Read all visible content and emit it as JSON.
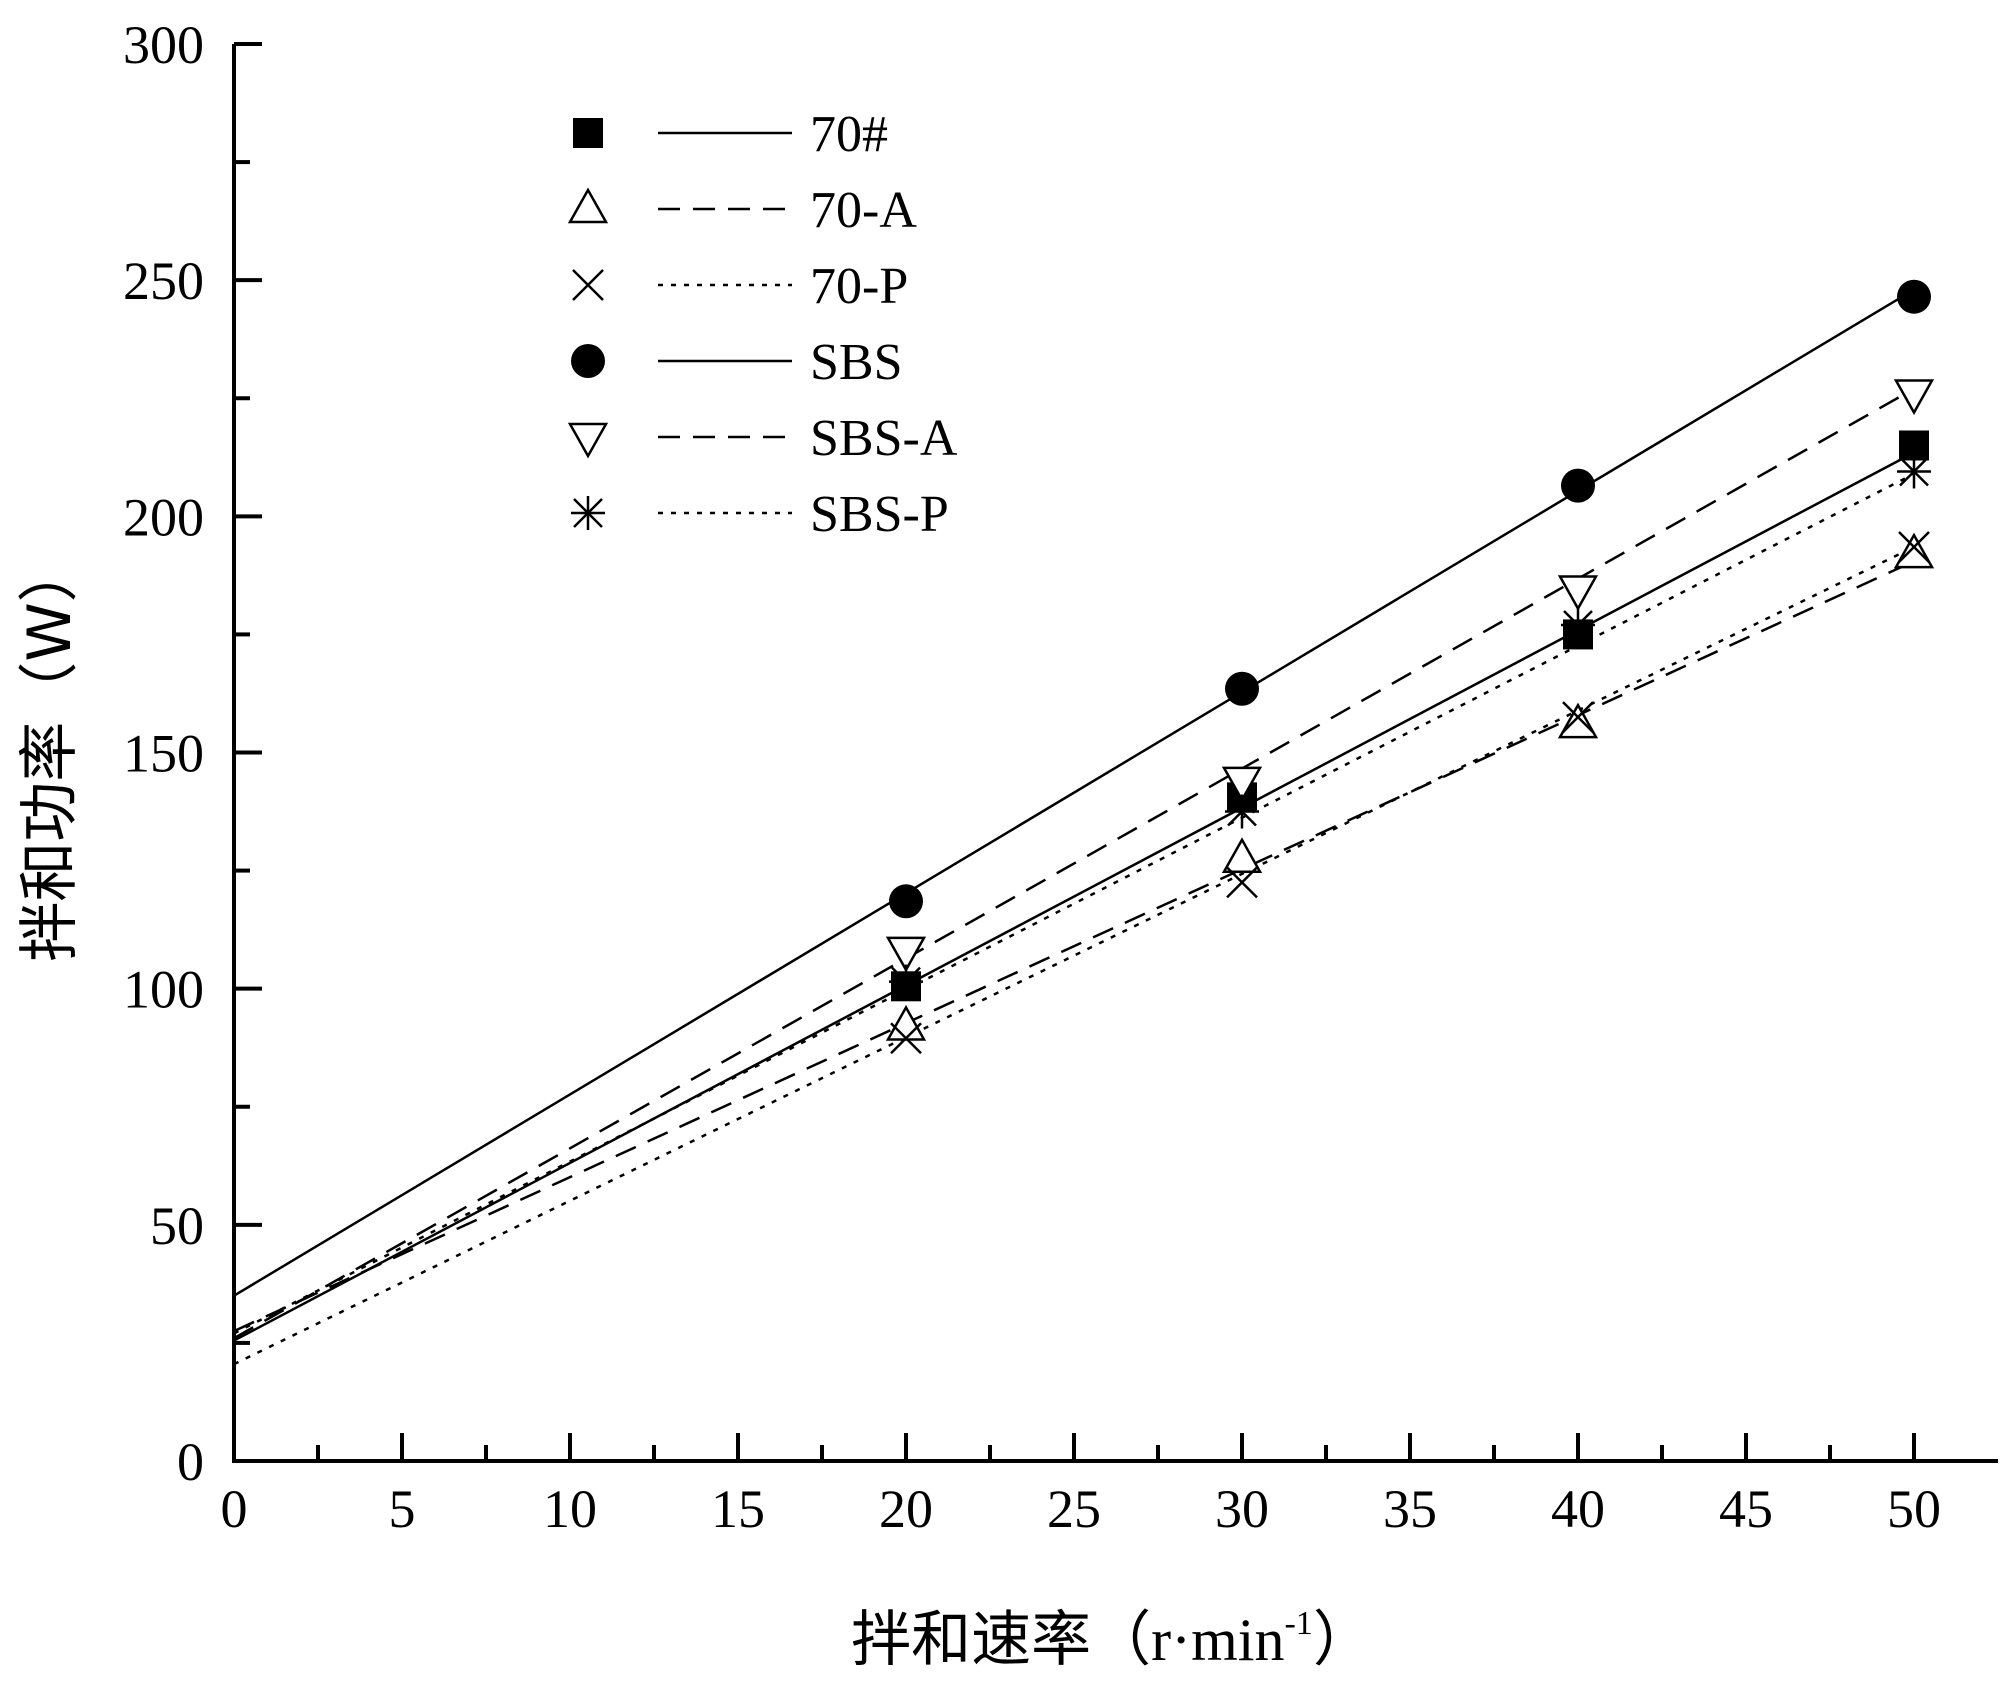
{
  "chart_data": {
    "type": "scatter",
    "xlabel": "拌和速率",
    "xlabel_unit": "（r·min",
    "xlabel_unit_sup": "-1",
    "xlabel_unit_close": "）",
    "ylabel": "拌和功率（W）",
    "xlim": [
      0,
      52.5
    ],
    "ylim": [
      0,
      300
    ],
    "x_ticks": [
      0,
      5,
      10,
      15,
      20,
      25,
      30,
      35,
      40,
      45,
      50
    ],
    "y_ticks": [
      0,
      50,
      100,
      150,
      200,
      250,
      300
    ],
    "x_tick_labels": [
      "0",
      "5",
      "10",
      "15",
      "20",
      "25",
      "30",
      "35",
      "40",
      "45",
      "50"
    ],
    "y_tick_labels": [
      "0",
      "50",
      "100",
      "150",
      "200",
      "250",
      "300"
    ],
    "legend_position": "top-left",
    "series": [
      {
        "name": "70#",
        "marker": "square",
        "line": "solid",
        "x": [
          20,
          30,
          40,
          50
        ],
        "y": [
          100.5,
          140.5,
          175,
          215
        ],
        "fit": {
          "intercept": 25.5,
          "slope": 3.76
        }
      },
      {
        "name": "70-A",
        "marker": "triangle-up",
        "line": "dashed",
        "x": [
          20,
          30,
          40,
          50
        ],
        "y": [
          92,
          127.5,
          156,
          192
        ],
        "fit": {
          "intercept": 27.5,
          "slope": 3.26
        }
      },
      {
        "name": "70-P",
        "marker": "x",
        "line": "dotted",
        "x": [
          20,
          30,
          40,
          50
        ],
        "y": [
          89.5,
          122.5,
          157.5,
          193.5
        ],
        "fit": {
          "intercept": 20.5,
          "slope": 3.46
        }
      },
      {
        "name": "SBS",
        "marker": "circle",
        "line": "solid",
        "x": [
          20,
          30,
          40,
          50
        ],
        "y": [
          118.5,
          163.5,
          206.5,
          246.5
        ],
        "fit": {
          "intercept": 35,
          "slope": 4.26
        }
      },
      {
        "name": "SBS-A",
        "marker": "triangle-down",
        "line": "dashed",
        "x": [
          20,
          30,
          40,
          50
        ],
        "y": [
          108,
          144,
          184.5,
          226
        ],
        "fit": {
          "intercept": 26,
          "slope": 4.02
        }
      },
      {
        "name": "SBS-P",
        "marker": "asterisk",
        "line": "dotted",
        "x": [
          20,
          30,
          40,
          50
        ],
        "y": [
          101.5,
          137.5,
          177,
          209.5
        ],
        "fit": {
          "intercept": 27,
          "slope": 3.64
        }
      }
    ]
  }
}
